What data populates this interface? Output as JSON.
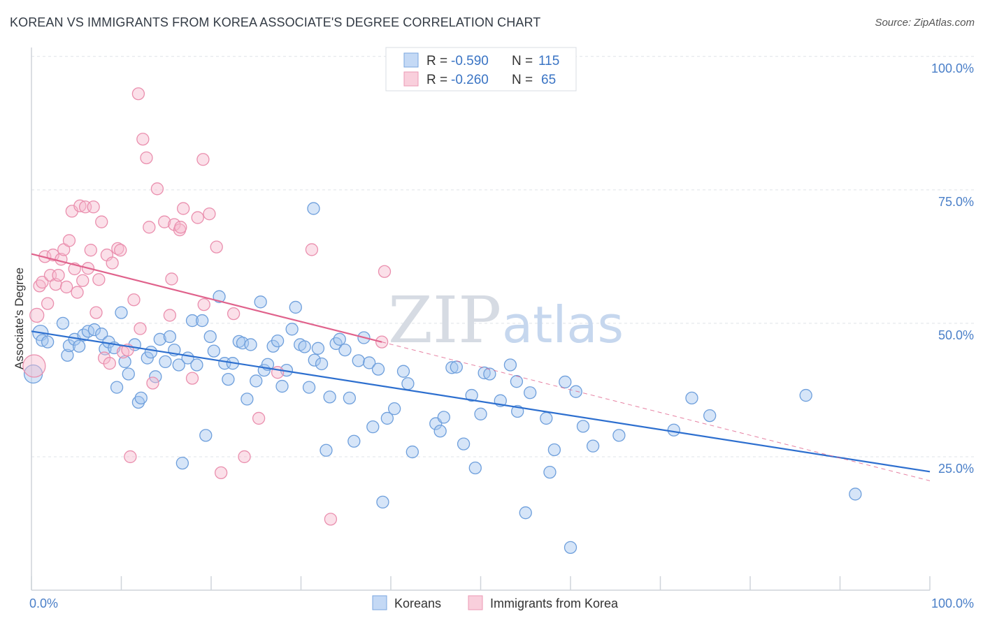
{
  "title": "KOREAN VS IMMIGRANTS FROM KOREA ASSOCIATE'S DEGREE CORRELATION CHART",
  "source": "Source: ZipAtlas.com",
  "watermark": {
    "zip": "ZIP",
    "atlas": "atlas"
  },
  "legend_top": {
    "rows": [
      {
        "r_label": "R =",
        "r_value": "-0.590",
        "n_label": "N =",
        "n_value": "115",
        "color": "#9ec1ee"
      },
      {
        "r_label": "R =",
        "r_value": "-0.260",
        "n_label": "N =",
        "n_value": "65",
        "color": "#f4b3c8"
      }
    ]
  },
  "legend_bottom": {
    "items": [
      {
        "label": "Koreans",
        "color": "#9ec1ee"
      },
      {
        "label": "Immigrants from Korea",
        "color": "#f4b3c8"
      }
    ]
  },
  "chart_data": {
    "type": "scatter",
    "xlabel": "",
    "ylabel": "Associate's Degree",
    "xlim": [
      0,
      100
    ],
    "ylim": [
      0,
      100
    ],
    "x_tick_labels": [
      "0.0%",
      "100.0%"
    ],
    "y_tick_labels": [
      "25.0%",
      "50.0%",
      "75.0%",
      "100.0%"
    ],
    "y_ticks": [
      25,
      50,
      75,
      100
    ],
    "grid": true,
    "colors": {
      "koreans": "#4a86d4",
      "immigrants": "#e8799e",
      "koreans_line": "#2d6fcf",
      "immigrants_line": "#e0628c"
    },
    "series": [
      {
        "name": "Koreans",
        "r": -0.59,
        "n": 115,
        "trend": {
          "x0": 0,
          "y0": 48.5,
          "x1": 100,
          "y1": 22.2
        },
        "points": [
          [
            0.2,
            40.5
          ],
          [
            1.0,
            48.2
          ],
          [
            1.2,
            46.8
          ],
          [
            1.8,
            46.5
          ],
          [
            3.5,
            50.0
          ],
          [
            4.0,
            44.0
          ],
          [
            4.2,
            45.8
          ],
          [
            4.8,
            47.0
          ],
          [
            5.3,
            45.7
          ],
          [
            5.8,
            47.8
          ],
          [
            6.3,
            48.5
          ],
          [
            7.0,
            48.8
          ],
          [
            7.8,
            48.0
          ],
          [
            8.2,
            45.2
          ],
          [
            8.6,
            46.5
          ],
          [
            9.2,
            45.4
          ],
          [
            9.5,
            38.0
          ],
          [
            10.0,
            52.0
          ],
          [
            10.4,
            42.8
          ],
          [
            10.8,
            40.5
          ],
          [
            11.5,
            46.0
          ],
          [
            11.9,
            35.2
          ],
          [
            12.2,
            36.0
          ],
          [
            12.9,
            43.5
          ],
          [
            13.3,
            44.6
          ],
          [
            13.8,
            40.0
          ],
          [
            14.3,
            47.0
          ],
          [
            14.9,
            42.8
          ],
          [
            15.4,
            47.5
          ],
          [
            15.9,
            45.0
          ],
          [
            16.4,
            42.2
          ],
          [
            16.8,
            23.8
          ],
          [
            17.4,
            43.5
          ],
          [
            17.9,
            50.5
          ],
          [
            18.4,
            42.2
          ],
          [
            19.0,
            50.5
          ],
          [
            19.4,
            29.0
          ],
          [
            19.9,
            47.5
          ],
          [
            20.3,
            44.8
          ],
          [
            20.9,
            55.0
          ],
          [
            21.5,
            42.5
          ],
          [
            21.9,
            39.5
          ],
          [
            22.4,
            42.5
          ],
          [
            23.1,
            46.6
          ],
          [
            23.5,
            46.3
          ],
          [
            24.0,
            35.8
          ],
          [
            24.4,
            46.0
          ],
          [
            25.0,
            39.2
          ],
          [
            25.5,
            54.0
          ],
          [
            25.9,
            41.2
          ],
          [
            26.3,
            42.3
          ],
          [
            26.9,
            45.7
          ],
          [
            27.4,
            46.7
          ],
          [
            27.9,
            38.2
          ],
          [
            28.4,
            41.2
          ],
          [
            29.0,
            48.9
          ],
          [
            29.4,
            53.0
          ],
          [
            29.9,
            46.0
          ],
          [
            30.4,
            45.6
          ],
          [
            30.9,
            38.0
          ],
          [
            31.5,
            43.1
          ],
          [
            31.9,
            45.3
          ],
          [
            32.3,
            42.4
          ],
          [
            32.8,
            26.2
          ],
          [
            33.2,
            36.2
          ],
          [
            33.9,
            46.2
          ],
          [
            34.3,
            47.0
          ],
          [
            34.9,
            45.0
          ],
          [
            35.4,
            36.0
          ],
          [
            35.9,
            27.9
          ],
          [
            36.4,
            43.0
          ],
          [
            37.0,
            47.3
          ],
          [
            37.6,
            42.6
          ],
          [
            38.0,
            30.6
          ],
          [
            38.6,
            41.4
          ],
          [
            39.1,
            16.5
          ],
          [
            39.6,
            32.2
          ],
          [
            40.4,
            34.0
          ],
          [
            41.4,
            41.0
          ],
          [
            41.9,
            38.7
          ],
          [
            42.4,
            25.9
          ],
          [
            45.0,
            31.2
          ],
          [
            45.5,
            29.8
          ],
          [
            45.9,
            32.4
          ],
          [
            46.8,
            41.7
          ],
          [
            47.3,
            41.8
          ],
          [
            48.1,
            27.4
          ],
          [
            49.0,
            36.5
          ],
          [
            49.4,
            22.9
          ],
          [
            50.0,
            33.0
          ],
          [
            50.4,
            40.7
          ],
          [
            51.0,
            40.5
          ],
          [
            52.2,
            35.5
          ],
          [
            53.3,
            42.2
          ],
          [
            54.0,
            39.1
          ],
          [
            54.1,
            33.5
          ],
          [
            55.0,
            14.5
          ],
          [
            55.5,
            37.0
          ],
          [
            57.3,
            32.2
          ],
          [
            57.7,
            22.1
          ],
          [
            58.2,
            26.3
          ],
          [
            59.4,
            39.0
          ],
          [
            60.6,
            37.2
          ],
          [
            61.4,
            30.7
          ],
          [
            62.5,
            27.0
          ],
          [
            65.4,
            29.0
          ],
          [
            71.5,
            30.0
          ],
          [
            73.5,
            36.0
          ],
          [
            75.5,
            32.7
          ],
          [
            86.2,
            36.5
          ],
          [
            91.7,
            18.0
          ],
          [
            31.4,
            71.5
          ],
          [
            60.0,
            8.0
          ]
        ]
      },
      {
        "name": "Immigrants from Korea",
        "r": -0.26,
        "n": 65,
        "trend": {
          "x0": 0,
          "y0": 63.0,
          "x1": 39.0,
          "y1": 46.5,
          "dash_x1": 100,
          "dash_y1": 20.5
        },
        "points": [
          [
            0.3,
            42.0
          ],
          [
            0.6,
            51.5
          ],
          [
            0.9,
            57.0
          ],
          [
            1.2,
            57.7
          ],
          [
            1.5,
            62.5
          ],
          [
            1.8,
            53.7
          ],
          [
            2.1,
            59.0
          ],
          [
            2.4,
            62.8
          ],
          [
            2.7,
            57.3
          ],
          [
            3.0,
            59.0
          ],
          [
            3.3,
            62.0
          ],
          [
            3.6,
            63.8
          ],
          [
            3.9,
            56.8
          ],
          [
            4.2,
            65.5
          ],
          [
            4.5,
            71.0
          ],
          [
            4.8,
            60.2
          ],
          [
            5.1,
            55.8
          ],
          [
            5.4,
            72.0
          ],
          [
            5.7,
            58.0
          ],
          [
            6.0,
            71.8
          ],
          [
            6.3,
            60.3
          ],
          [
            6.6,
            63.7
          ],
          [
            6.9,
            71.8
          ],
          [
            7.2,
            52.0
          ],
          [
            7.5,
            58.2
          ],
          [
            7.8,
            69.0
          ],
          [
            8.1,
            43.5
          ],
          [
            8.4,
            62.8
          ],
          [
            8.7,
            42.5
          ],
          [
            9.0,
            61.3
          ],
          [
            9.6,
            64.0
          ],
          [
            9.9,
            63.7
          ],
          [
            10.2,
            44.6
          ],
          [
            10.7,
            45.0
          ],
          [
            11.0,
            25.0
          ],
          [
            11.4,
            54.4
          ],
          [
            11.9,
            93.0
          ],
          [
            12.1,
            49.0
          ],
          [
            12.4,
            84.5
          ],
          [
            12.8,
            81.0
          ],
          [
            13.1,
            68.0
          ],
          [
            13.5,
            38.8
          ],
          [
            14.0,
            75.2
          ],
          [
            14.8,
            69.0
          ],
          [
            15.4,
            51.5
          ],
          [
            15.6,
            58.3
          ],
          [
            15.9,
            68.5
          ],
          [
            16.5,
            67.5
          ],
          [
            16.6,
            68.0
          ],
          [
            16.9,
            71.5
          ],
          [
            17.9,
            39.7
          ],
          [
            18.5,
            69.8
          ],
          [
            19.1,
            80.7
          ],
          [
            19.2,
            53.5
          ],
          [
            19.8,
            70.5
          ],
          [
            20.6,
            64.3
          ],
          [
            21.1,
            22.0
          ],
          [
            22.5,
            51.8
          ],
          [
            23.7,
            25.0
          ],
          [
            25.3,
            32.2
          ],
          [
            27.4,
            40.8
          ],
          [
            31.2,
            63.8
          ],
          [
            33.3,
            13.3
          ],
          [
            39.0,
            46.5
          ],
          [
            39.3,
            59.7
          ]
        ]
      }
    ]
  }
}
